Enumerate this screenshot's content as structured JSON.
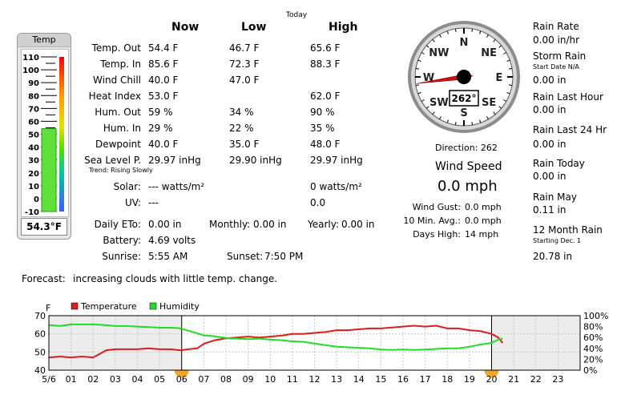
{
  "thermometer": {
    "title": "Temp",
    "scale": [
      "110",
      "100",
      "90",
      "80",
      "70",
      "60",
      "50",
      "40",
      "30",
      "20",
      "10",
      "0",
      "-10"
    ],
    "scale_min": -10,
    "scale_max": 110,
    "value": 54.3,
    "reading": "54.3°F"
  },
  "table": {
    "today_label": "Today",
    "headers": {
      "now": "Now",
      "low": "Low",
      "high": "High"
    },
    "rows": [
      {
        "label": "Temp. Out",
        "now": "54.4 F",
        "low": "46.7 F",
        "high": "65.6 F"
      },
      {
        "label": "Temp. In",
        "now": "85.6 F",
        "low": "72.3 F",
        "high": "88.3 F"
      },
      {
        "label": "Wind Chill",
        "now": "40.0 F",
        "low": "47.0 F",
        "high": ""
      },
      {
        "label": "Heat Index",
        "now": "53.0 F",
        "low": "",
        "high": "62.0 F"
      },
      {
        "label": "Hum. Out",
        "now": "59 %",
        "low": "34 %",
        "high": "90 %"
      },
      {
        "label": "Hum. In",
        "now": "29 %",
        "low": "22 %",
        "high": "35 %"
      },
      {
        "label": "Dewpoint",
        "now": "40.0 F",
        "low": "35.0 F",
        "high": "48.0 F"
      },
      {
        "label": "Sea Level P.",
        "now": "29.97 inHg",
        "low": "29.90 inHg",
        "high": "29.97 inHg"
      }
    ],
    "trend": "Trend: Rising Slowly",
    "solar_label": "Solar:",
    "solar_now": "--- watts/m²",
    "solar_high": "0 watts/m²",
    "uv_label": "UV:",
    "uv_now": "---",
    "uv_high": "0.0",
    "eto_label": "Daily ETo:",
    "eto_value": "0.00 in",
    "monthly_label": "Monthly:",
    "monthly_value": "0.00 in",
    "yearly_label": "Yearly:",
    "yearly_value": "0.00 in",
    "battery_label": "Battery:",
    "battery_value": "4.69 volts",
    "sunrise_label": "Sunrise:",
    "sunrise_value": "5:55 AM",
    "sunset_label": "Sunset:",
    "sunset_value": "7:50 PM"
  },
  "compass": {
    "directions": [
      "N",
      "NE",
      "E",
      "SE",
      "S",
      "SW",
      "W",
      "NW"
    ],
    "direction_deg": 262,
    "readout": "262°",
    "direction_text": "Direction: 262",
    "wind_speed_label": "Wind Speed",
    "wind_speed": "0.0 mph",
    "gust_label": "Wind Gust:",
    "gust_value": "0.0 mph",
    "avg_label": "10 Min. Avg.:",
    "avg_value": "0.0 mph",
    "days_high_label": "Days High:",
    "days_high_value": "14 mph"
  },
  "rain": {
    "rate_label": "Rain Rate",
    "rate_value": "0.00 in/hr",
    "storm_label": "Storm Rain",
    "storm_start": "Start Date N/A",
    "storm_value": "0.00 in",
    "last_hour_label": "Rain Last Hour",
    "last_hour_value": "0.00 in",
    "last24_label": "Rain Last 24 Hr",
    "last24_value": "0.00 in",
    "today_label": "Rain Today",
    "today_value": "0.00 in",
    "may_label": "Rain May",
    "may_value": "0.11 in",
    "twelve_label": "12 Month Rain",
    "twelve_start": "Starting Dec. 1",
    "twelve_value": "20.78 in"
  },
  "forecast": {
    "label": "Forecast:",
    "text": "increasing clouds with little temp. change."
  },
  "chart_data": {
    "type": "line",
    "y_unit": "F",
    "legend": [
      {
        "name": "Temperature",
        "color": "#dd1c1c"
      },
      {
        "name": "Humidity",
        "color": "#22dd22"
      }
    ],
    "ylim_left": [
      40,
      70
    ],
    "yticks_left": [
      "70",
      "60",
      "50",
      "40"
    ],
    "ylim_right": [
      0,
      100
    ],
    "yticks_right": [
      "100%",
      "80%",
      "60%",
      "40%",
      "20%",
      "0%"
    ],
    "x_labels": [
      "5/6",
      "01",
      "02",
      "03",
      "04",
      "05",
      "06",
      "07",
      "08",
      "09",
      "10",
      "11",
      "12",
      "13",
      "14",
      "15",
      "16",
      "17",
      "18",
      "19",
      "20",
      "21",
      "22",
      "23"
    ],
    "x_hours": [
      0,
      1,
      2,
      3,
      4,
      5,
      6,
      7,
      8,
      9,
      10,
      11,
      12,
      13,
      14,
      15,
      16,
      17,
      18,
      19,
      20,
      21,
      22,
      23
    ],
    "night_spans": [
      [
        0,
        6
      ],
      [
        20,
        24
      ]
    ],
    "sun_markers": [
      6,
      20
    ],
    "series": [
      {
        "name": "Temperature",
        "hours": [
          0,
          0.5,
          1,
          1.5,
          2,
          2.3,
          2.6,
          3,
          3.5,
          4,
          4.5,
          5,
          5.5,
          5.9,
          6,
          6.3,
          6.7,
          7,
          7.5,
          8,
          8.5,
          9,
          9.5,
          10,
          10.5,
          11,
          11.5,
          12,
          12.5,
          13,
          13.5,
          14,
          14.5,
          15,
          15.5,
          16,
          16.5,
          17,
          17.5,
          18,
          18.5,
          19,
          19.5,
          20,
          20.3,
          20.5
        ],
        "values": [
          47,
          47.5,
          47,
          47.5,
          47,
          49,
          51,
          51.5,
          51.5,
          51.5,
          52,
          51.5,
          51.5,
          51,
          51,
          51.5,
          52,
          54.5,
          56.5,
          57.5,
          58,
          58.5,
          58,
          58.5,
          59,
          60,
          60,
          60.5,
          61,
          62,
          62,
          62.5,
          63,
          63,
          63.5,
          64,
          64.5,
          64,
          64.5,
          63,
          63,
          62,
          61.5,
          60,
          58,
          55
        ]
      },
      {
        "name": "Humidity",
        "hours": [
          0,
          0.5,
          1,
          1.5,
          2,
          2.5,
          3,
          3.5,
          4,
          4.5,
          5,
          5.5,
          5.9,
          6,
          6.5,
          7,
          7.5,
          8,
          8.5,
          9,
          9.5,
          10,
          10.5,
          11,
          11.5,
          12,
          12.5,
          13,
          13.5,
          14,
          14.5,
          15,
          15.5,
          16,
          16.5,
          17,
          17.5,
          18,
          18.5,
          19,
          19.5,
          20,
          20.3,
          20.5
        ],
        "values": [
          83,
          81,
          84,
          84,
          84,
          83,
          81,
          81,
          80,
          79,
          78,
          78,
          77,
          76,
          70,
          64,
          62,
          59,
          58,
          57,
          58,
          56,
          55,
          53,
          52,
          49,
          46,
          43,
          42,
          41,
          40,
          38,
          37,
          38,
          37,
          38,
          39,
          40,
          40,
          43,
          47,
          50,
          56,
          58
        ]
      }
    ]
  }
}
